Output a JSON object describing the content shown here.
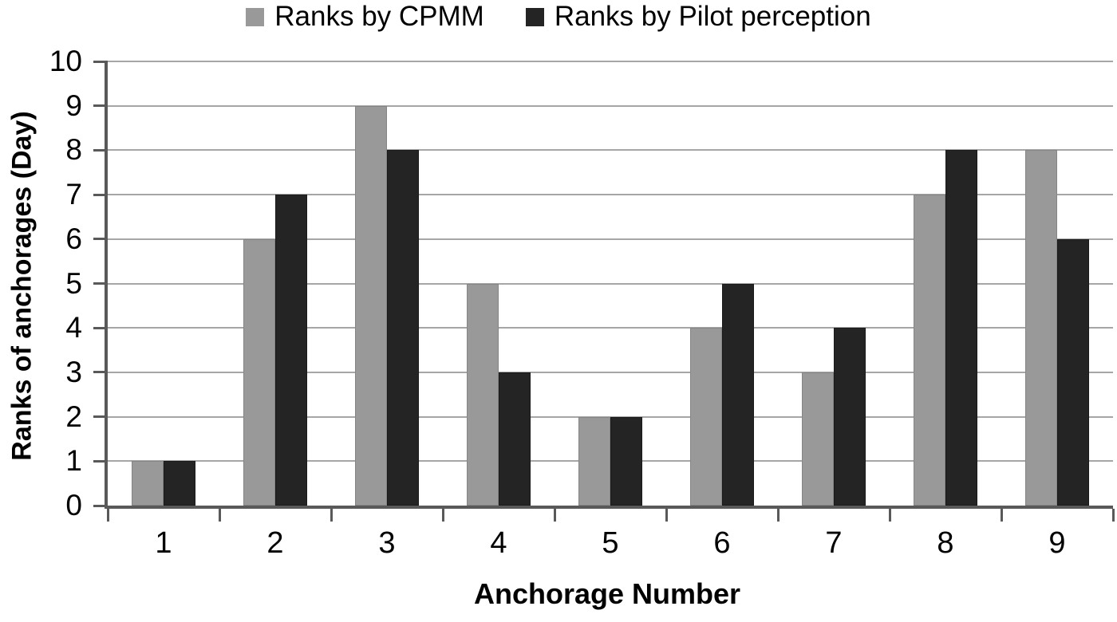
{
  "figure": {
    "background_color": "#ffffff",
    "axis_color": "#595959",
    "gridline_color": "#a6a6a6",
    "text_color": "#000000"
  },
  "legend": {
    "items": [
      {
        "label": "Ranks by CPMM",
        "color": "#999999"
      },
      {
        "label": "Ranks by Pilot perception",
        "color": "#242424"
      }
    ]
  },
  "chart_data": {
    "type": "bar",
    "title": "",
    "categories": [
      "1",
      "2",
      "3",
      "4",
      "5",
      "6",
      "7",
      "8",
      "9"
    ],
    "series": [
      {
        "name": "Ranks by CPMM",
        "color": "#999999",
        "border_color": "#858585",
        "values": [
          1,
          6,
          9,
          5,
          2,
          4,
          3,
          7,
          8
        ]
      },
      {
        "name": "Ranks by Pilot perception",
        "color": "#242424",
        "border_color": "#1a1a1a",
        "values": [
          1,
          7,
          8,
          3,
          2,
          5,
          4,
          8,
          6
        ]
      }
    ],
    "xlabel": "Anchorage Number",
    "ylabel": "Ranks of anchorages (Day)",
    "ylim": [
      0,
      10
    ],
    "yticks": [
      0,
      1,
      2,
      3,
      4,
      5,
      6,
      7,
      8,
      9,
      10
    ],
    "grid": "horizontal",
    "legend_position": "top"
  }
}
